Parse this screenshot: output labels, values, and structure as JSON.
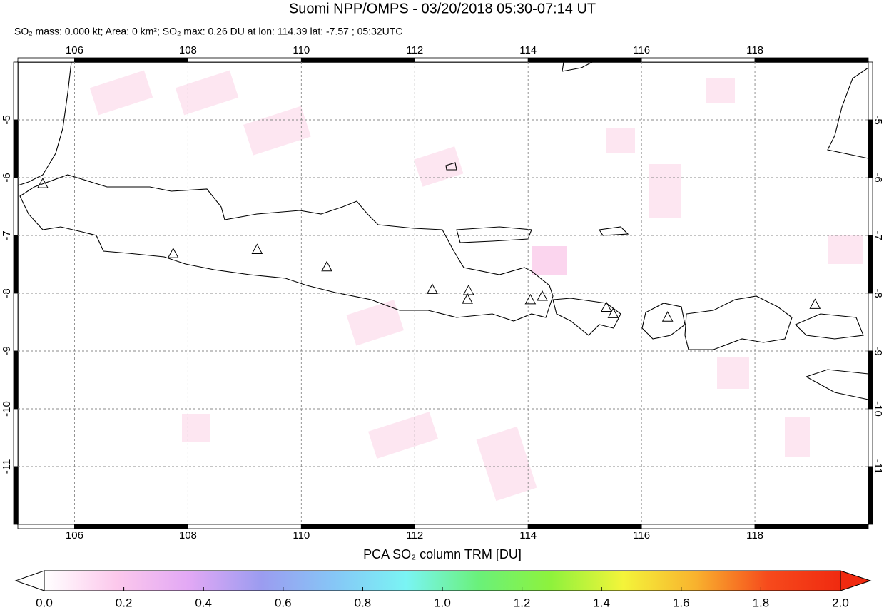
{
  "chart_data": {
    "type": "map",
    "title": "Suomi NPP/OMPS - 03/20/2018 05:30-07:14 UT",
    "subtitle": "SO₂ mass: 0.000 kt; Area: 0 km²; SO₂ max: 0.26 DU at lon: 114.39 lat: -7.57 ; 05:32UTC",
    "xlim": [
      105,
      120
    ],
    "ylim": [
      -12,
      -4
    ],
    "xticks": [
      106,
      108,
      110,
      112,
      114,
      116,
      118
    ],
    "yticks": [
      -5,
      -6,
      -7,
      -8,
      -9,
      -10,
      -11
    ],
    "grid": true,
    "volcanoes": {
      "lon": [
        105.44,
        107.74,
        109.22,
        110.45,
        112.31,
        112.95,
        112.93,
        114.04,
        114.25,
        115.38,
        115.5,
        116.46,
        119.06
      ],
      "lat": [
        -6.1,
        -7.31,
        -7.24,
        -7.54,
        -7.93,
        -7.95,
        -8.1,
        -8.11,
        -8.05,
        -8.24,
        -8.35,
        -8.41,
        -8.19
      ]
    },
    "colorbar": {
      "label": "PCA SO₂ column TRM [DU]",
      "range": [
        0,
        2
      ],
      "colors": [
        "#ffffff",
        "#fcc8ec",
        "#e2a8f5",
        "#9b9cf0",
        "#86c6f6",
        "#7af4f4",
        "#6af17a",
        "#8ef23c",
        "#f4f43a",
        "#f8b22e",
        "#f64a1c",
        "#f02a10"
      ],
      "ticks": [
        {
          "value": 0,
          "label": "0.0"
        },
        {
          "value": 0.2,
          "label": "0.2"
        },
        {
          "value": 0.4,
          "label": "0.4"
        },
        {
          "value": 0.6,
          "label": "0.6"
        },
        {
          "value": 0.8,
          "label": "0.8"
        },
        {
          "value": 1,
          "label": "1.0"
        },
        {
          "value": 1.2,
          "label": "1.2"
        },
        {
          "value": 1.4,
          "label": "1.4"
        },
        {
          "value": 1.6,
          "label": "1.6"
        },
        {
          "value": 1.8,
          "label": "1.8"
        },
        {
          "value": 2,
          "label": "2.0"
        }
      ]
    }
  }
}
